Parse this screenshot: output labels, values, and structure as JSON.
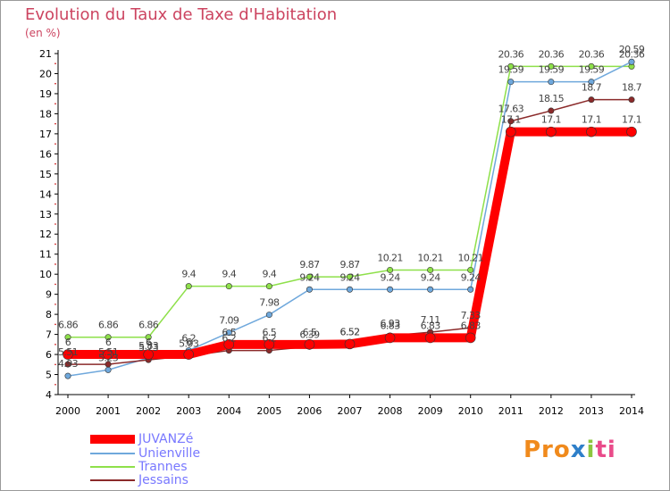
{
  "chart_data": {
    "type": "line",
    "title": "Evolution du Taux de Taxe d'Habitation",
    "unit_label": "(en %)",
    "x": [
      "2000",
      "2001",
      "2002",
      "2003",
      "2004",
      "2005",
      "2006",
      "2007",
      "2008",
      "2009",
      "2010",
      "2011",
      "2012",
      "2013",
      "2014"
    ],
    "ylim": [
      4,
      21
    ],
    "yticks": [
      4,
      5,
      6,
      7,
      8,
      9,
      10,
      11,
      12,
      13,
      14,
      15,
      16,
      17,
      18,
      19,
      20,
      21
    ],
    "grid": false,
    "legend_position": "bottom-left",
    "series": [
      {
        "name": "JUVANZé",
        "color": "#ff0000",
        "values": [
          6.0,
          6.0,
          6.0,
          6.0,
          6.5,
          6.5,
          6.5,
          6.52,
          6.83,
          6.83,
          6.83,
          17.1,
          17.1,
          17.1,
          17.1
        ],
        "labels": [
          "6",
          "6",
          "6",
          "6",
          "6.5",
          "6.5",
          "6.5",
          "6.52",
          "6.83",
          "6.83",
          "6.83",
          "17.1",
          "17.1",
          "17.1",
          "17.1"
        ]
      },
      {
        "name": "Unienville",
        "color": "#6fa8dc",
        "values": [
          4.93,
          5.23,
          5.83,
          6.2,
          7.09,
          7.98,
          9.24,
          9.24,
          9.24,
          9.24,
          9.24,
          19.59,
          19.59,
          19.59,
          20.59
        ],
        "labels": [
          "4.93",
          "5.23",
          "5.83",
          "6.2",
          "7.09",
          "7.98",
          "9.24",
          "9.24",
          "9.24",
          "9.24",
          "9.24",
          "19.59",
          "19.59",
          "19.59",
          "20.59"
        ]
      },
      {
        "name": "Trannes",
        "color": "#8ee04a",
        "values": [
          6.86,
          6.86,
          6.86,
          9.4,
          9.4,
          9.4,
          9.87,
          9.87,
          10.21,
          10.21,
          10.21,
          20.36,
          20.36,
          20.36,
          20.36
        ],
        "labels": [
          "6.86",
          "6.86",
          "6.86",
          "9.4",
          "9.4",
          "9.4",
          "9.87",
          "9.87",
          "10.21",
          "10.21",
          "10.21",
          "20.36",
          "20.36",
          "20.36",
          "20.36"
        ]
      },
      {
        "name": "Jessains",
        "color": "#8b2a2a",
        "values": [
          5.51,
          5.51,
          5.73,
          5.93,
          6.2,
          6.2,
          6.39,
          6.52,
          6.93,
          7.11,
          7.33,
          17.63,
          18.15,
          18.7,
          18.7
        ],
        "labels": [
          "5.51",
          "5.51",
          "5.73",
          "5.93",
          "6.2",
          "6.2",
          "6.39",
          "6.52",
          "6.93",
          "7.11",
          "7.33",
          "17.63",
          "18.15",
          "18.7",
          "18.7"
        ]
      }
    ]
  },
  "logo": {
    "p1": "Pro",
    "p2": "x",
    "p3": "i",
    "p4": "ti"
  }
}
